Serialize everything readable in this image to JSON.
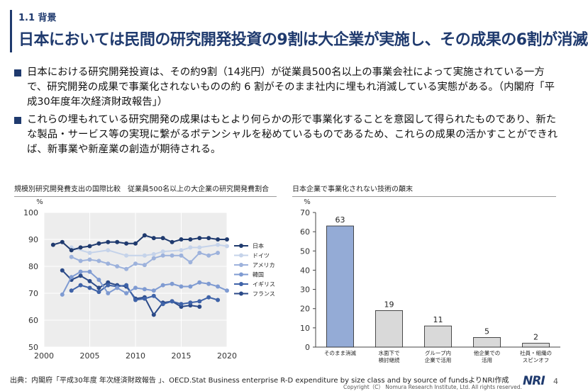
{
  "header": {
    "section": "1.1 背景",
    "title": "日本においては民間の研究開発投資の9割は大企業が実施し、その成果の6割が消滅"
  },
  "bullets": [
    "日本における研究開発投資は、その約9割（14兆円）が従業員500名以上の事業会社によって実施されている一方で、研究開発の成果で事業化されないものの約 6 割がそのまま社内に埋もれ消滅している実態がある。（内閣府「平成30年度年次経済財政報告」）",
    "これらの埋もれている研究開発の成果はもとより何らかの形で事業化することを意図して得られたものであり、新たな製品・サービス等の実現に繋がるポテンシャルを秘めているものであるため、これらの成果の活かすことができれば、新事業や新産業の創造が期待される。"
  ],
  "footer": {
    "source": "出典：内閣府「平成30年度 年次経済財政報告 」、OECD.Stat Business enterprise R-D expenditure by size class and by source of fundsよりNRI作成",
    "copyright": "Copyright（C） Nomura Research Institute, Ltd. All rights reserved.",
    "logo": "NRI",
    "page": "4"
  },
  "chart_titles": {
    "left": "規模別研究開発費支出の国際比較　従業員500名以上の大企業の研究開発費割合",
    "right": "日本企業で事業化されない技術の顛末"
  },
  "chart_data": [
    {
      "type": "line",
      "ylabel": "%",
      "ylim": [
        50,
        100
      ],
      "yticks": [
        50,
        60,
        70,
        80,
        90,
        100
      ],
      "xlim": [
        2000,
        2020
      ],
      "xticks": [
        2000,
        2005,
        2010,
        2015,
        2020
      ],
      "grid": true,
      "legend": "right",
      "series": [
        {
          "name": "日本",
          "color": "#1f3a6e",
          "points": [
            [
              2001,
              88
            ],
            [
              2002,
              89
            ],
            [
              2003,
              86
            ],
            [
              2004,
              87
            ],
            [
              2005,
              87.5
            ],
            [
              2006,
              88.5
            ],
            [
              2007,
              89
            ],
            [
              2008,
              89
            ],
            [
              2009,
              88.5
            ],
            [
              2010,
              88.5
            ],
            [
              2011,
              91.5
            ],
            [
              2012,
              90.5
            ],
            [
              2013,
              90.5
            ],
            [
              2014,
              89
            ],
            [
              2015,
              90
            ],
            [
              2016,
              90
            ],
            [
              2017,
              90.5
            ],
            [
              2018,
              90.5
            ],
            [
              2019,
              90
            ],
            [
              2020,
              90
            ]
          ]
        },
        {
          "name": "ドイツ",
          "color": "#c5d3ea",
          "points": [
            [
              2003,
              87
            ],
            [
              2005,
              85
            ],
            [
              2007,
              86
            ],
            [
              2009,
              84
            ],
            [
              2011,
              84
            ],
            [
              2012,
              84.5
            ],
            [
              2013,
              85.5
            ],
            [
              2015,
              86
            ],
            [
              2016,
              87
            ],
            [
              2017,
              87
            ],
            [
              2019,
              88
            ],
            [
              2020,
              87.5
            ]
          ]
        },
        {
          "name": "アメリカ",
          "color": "#9db2dc",
          "points": [
            [
              2003,
              83.5
            ],
            [
              2004,
              82
            ],
            [
              2005,
              82.5
            ],
            [
              2006,
              82
            ],
            [
              2007,
              81
            ],
            [
              2008,
              80
            ],
            [
              2009,
              79
            ],
            [
              2010,
              81
            ],
            [
              2011,
              80.5
            ],
            [
              2012,
              83
            ],
            [
              2013,
              84
            ],
            [
              2014,
              84
            ],
            [
              2015,
              84
            ],
            [
              2016,
              81.5
            ],
            [
              2017,
              85
            ],
            [
              2018,
              84
            ],
            [
              2019,
              85
            ]
          ]
        },
        {
          "name": "韓国",
          "color": "#7f9bd2",
          "points": [
            [
              2002,
              69.5
            ],
            [
              2003,
              76
            ],
            [
              2004,
              78
            ],
            [
              2005,
              78
            ],
            [
              2006,
              75
            ],
            [
              2007,
              70
            ],
            [
              2008,
              72
            ],
            [
              2009,
              70
            ],
            [
              2010,
              72
            ],
            [
              2011,
              71.5
            ],
            [
              2012,
              71
            ],
            [
              2013,
              73
            ],
            [
              2014,
              73.5
            ],
            [
              2015,
              72.5
            ],
            [
              2016,
              72.5
            ],
            [
              2017,
              74
            ],
            [
              2018,
              73.5
            ],
            [
              2019,
              72.5
            ],
            [
              2020,
              71
            ]
          ]
        },
        {
          "name": "イギリス",
          "color": "#3f63a8",
          "points": [
            [
              2003,
              71
            ],
            [
              2004,
              73
            ],
            [
              2005,
              72
            ],
            [
              2006,
              70.5
            ],
            [
              2007,
              73
            ],
            [
              2008,
              72.5
            ],
            [
              2009,
              73
            ],
            [
              2010,
              67.5
            ],
            [
              2011,
              68
            ],
            [
              2012,
              69
            ],
            [
              2013,
              66
            ],
            [
              2014,
              67
            ],
            [
              2015,
              66
            ],
            [
              2016,
              66.5
            ],
            [
              2017,
              67
            ],
            [
              2018,
              68.5
            ],
            [
              2019,
              67.5
            ]
          ]
        },
        {
          "name": "フランス",
          "color": "#2b4a88",
          "points": [
            [
              2002,
              78.5
            ],
            [
              2003,
              75
            ],
            [
              2004,
              76.5
            ],
            [
              2005,
              74.5
            ],
            [
              2006,
              72
            ],
            [
              2007,
              74
            ],
            [
              2008,
              73
            ],
            [
              2009,
              72.5
            ],
            [
              2010,
              68
            ],
            [
              2011,
              68.5
            ],
            [
              2012,
              62
            ],
            [
              2013,
              66.5
            ],
            [
              2014,
              67
            ],
            [
              2015,
              65
            ],
            [
              2016,
              65.5
            ],
            [
              2017,
              65
            ]
          ]
        }
      ]
    },
    {
      "type": "bar",
      "ylabel": "%",
      "ylim": [
        0,
        70
      ],
      "yticks": [
        0,
        10,
        20,
        30,
        40,
        50,
        60,
        70
      ],
      "categories": [
        [
          "そのまま消滅"
        ],
        [
          "水面下で",
          "検討継続"
        ],
        [
          "グループ内",
          "企業で活用"
        ],
        [
          "他企業での",
          "活用"
        ],
        [
          "社員・組織の",
          "スピンオフ"
        ]
      ],
      "values": [
        63,
        19,
        11,
        5,
        2
      ],
      "colors": [
        "#94abd6",
        "#d9d9d9",
        "#d9d9d9",
        "#d9d9d9",
        "#d9d9d9"
      ]
    }
  ]
}
